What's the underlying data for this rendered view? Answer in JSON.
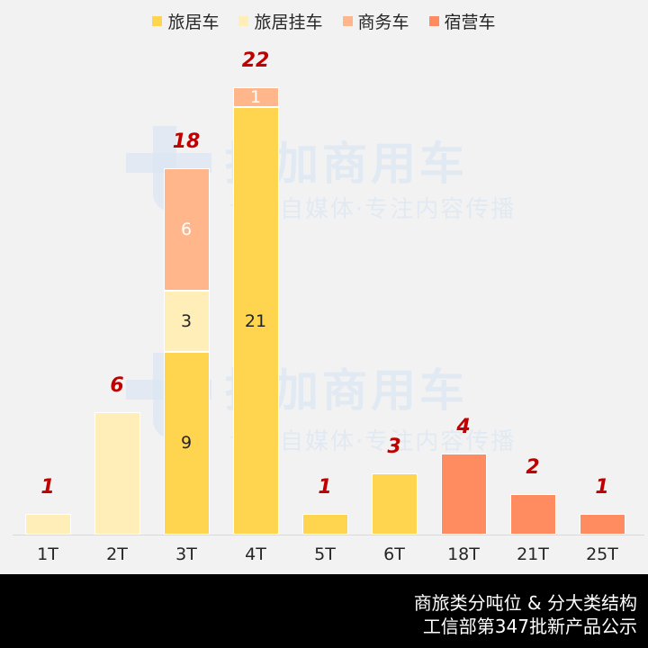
{
  "legend": [
    {
      "label": "旅居车",
      "color": "#FFD54F"
    },
    {
      "label": "旅居挂车",
      "color": "#FFEEB8"
    },
    {
      "label": "商务车",
      "color": "#FFB68A"
    },
    {
      "label": "宿营车",
      "color": "#FF8C61"
    }
  ],
  "watermark": {
    "main": "提加商用车",
    "sub": "专注自媒体·专注内容传播"
  },
  "footer": {
    "line1": "商旅类分吨位 & 分大类结构",
    "line2": "工信部第347批新产品公示"
  },
  "chart_data": {
    "type": "bar",
    "stacked": true,
    "title": "商旅类分吨位 & 分大类结构",
    "subtitle": "工信部第347批新产品公示",
    "xlabel": "",
    "ylabel": "",
    "grid": false,
    "legend_position": "top",
    "categories": [
      "1T",
      "2T",
      "3T",
      "4T",
      "5T",
      "6T",
      "18T",
      "21T",
      "25T"
    ],
    "series": [
      {
        "name": "旅居车",
        "color": "#FFD54F",
        "values": [
          0,
          0,
          9,
          21,
          1,
          3,
          0,
          0,
          0
        ]
      },
      {
        "name": "旅居挂车",
        "color": "#FFEEB8",
        "values": [
          1,
          6,
          3,
          0,
          0,
          0,
          0,
          0,
          0
        ]
      },
      {
        "name": "商务车",
        "color": "#FFB68A",
        "values": [
          0,
          0,
          6,
          1,
          0,
          0,
          0,
          0,
          0
        ]
      },
      {
        "name": "宿营车",
        "color": "#FF8C61",
        "values": [
          0,
          0,
          0,
          0,
          0,
          0,
          4,
          2,
          1
        ]
      }
    ],
    "totals": [
      1,
      6,
      18,
      22,
      1,
      3,
      4,
      2,
      1
    ],
    "ylim": [
      0,
      22
    ]
  }
}
